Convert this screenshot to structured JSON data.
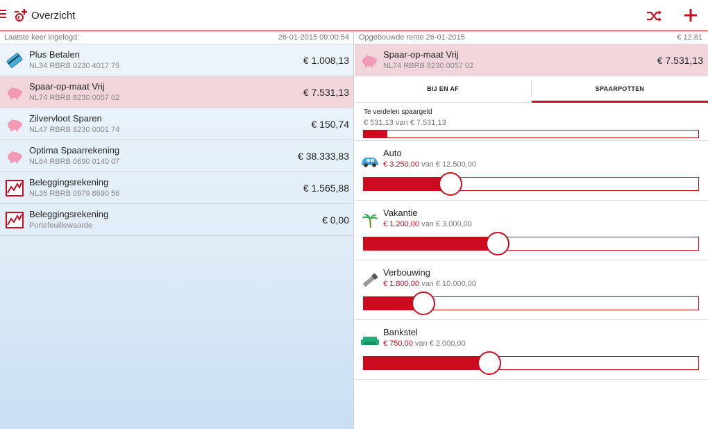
{
  "header": {
    "title": "Overzicht",
    "accent_color": "#cc0b1f"
  },
  "left": {
    "login_label": "Laatste keer ingelogd:",
    "login_value": "26-01-2015 09:00:54",
    "accounts": [
      {
        "name": "Plus Betalen",
        "number": "NL34 RBRB 0230 4017 75",
        "amount": "€ 1.008,13",
        "icon": "card-icon"
      },
      {
        "name": "Spaar-op-maat Vrij",
        "number": "NL74 RBRB 8230 0057 02",
        "amount": "€ 7.531,13",
        "icon": "piggy-bank-icon",
        "selected": true
      },
      {
        "name": "Zilvervloot Sparen",
        "number": "NL47 RBRB 8230 0001 74",
        "amount": "€ 150,74",
        "icon": "piggy-bank-icon"
      },
      {
        "name": "Optima Spaarrekening",
        "number": "NL64 RBRB 0690 0140 07",
        "amount": "€ 38.333,83",
        "icon": "piggy-bank-icon"
      },
      {
        "name": "Beleggingsrekening",
        "number": "NL35 RBRB 0979 8690 56",
        "amount": "€ 1.565,88",
        "icon": "investment-chart-icon"
      },
      {
        "name": "Beleggingsrekening",
        "number": "Portefeuillewaarde",
        "amount": "€ 0,00",
        "icon": "investment-chart-icon"
      }
    ]
  },
  "right": {
    "interest_label": "Opgebouwde rente 26-01-2015",
    "interest_value": "€ 12,81",
    "selected_account": {
      "name": "Spaar-op-maat Vrij",
      "number": "NL74 RBRB 8230 0057 02",
      "amount": "€ 7.531,13"
    },
    "tabs": [
      {
        "label": "BIJ EN AF",
        "active": false
      },
      {
        "label": "SPAARPOTTEN",
        "active": true
      }
    ],
    "distribute": {
      "label": "Te verdelen spaargeld",
      "current": "€ 531,13",
      "of_label": "van",
      "total": "€ 7.531,13",
      "fraction": 0.0705
    },
    "pots": [
      {
        "name": "Auto",
        "current": "€ 3.250,00",
        "of_label": "van",
        "target": "€ 12.500,00",
        "fraction": 0.26,
        "icon": "car-icon"
      },
      {
        "name": "Vakantie",
        "current": "€ 1.200,00",
        "of_label": "van",
        "target": "€ 3.000,00",
        "fraction": 0.4,
        "icon": "palm-tree-icon"
      },
      {
        "name": "Verbouwing",
        "current": "€ 1.800,00",
        "of_label": "van",
        "target": "€ 10.000,00",
        "fraction": 0.18,
        "icon": "saw-icon"
      },
      {
        "name": "Bankstel",
        "current": "€ 750,00",
        "of_label": "van",
        "target": "€ 2.000,00",
        "fraction": 0.375,
        "icon": "sofa-icon"
      }
    ]
  }
}
